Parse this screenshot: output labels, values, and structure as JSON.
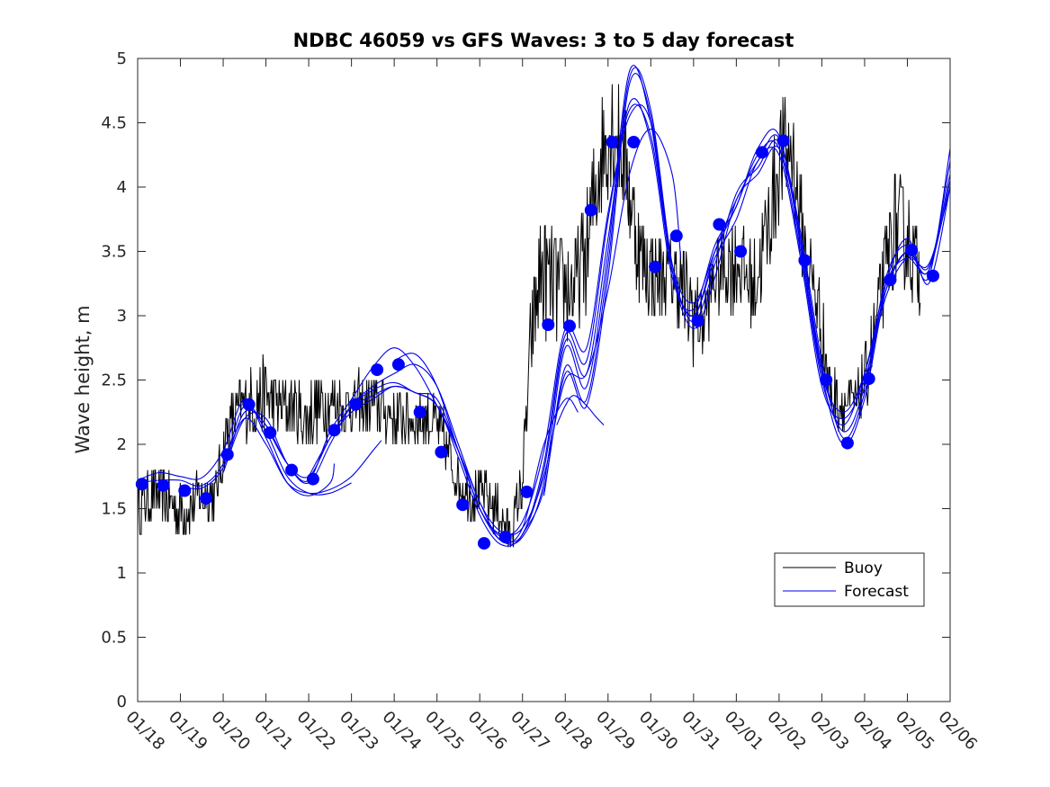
{
  "chart_data": {
    "type": "line",
    "title": "NDBC 46059 vs GFS Waves: 3 to 5 day forecast",
    "xlabel": "",
    "ylabel": "Wave height, m",
    "xlim": [
      0,
      19
    ],
    "ylim": [
      0,
      5
    ],
    "x_tick_labels": [
      "01/18",
      "01/19",
      "01/20",
      "01/21",
      "01/22",
      "01/23",
      "01/24",
      "01/25",
      "01/26",
      "01/27",
      "01/28",
      "01/29",
      "01/30",
      "01/31",
      "02/01",
      "02/02",
      "02/03",
      "02/04",
      "02/05",
      "02/06"
    ],
    "y_ticks": [
      0,
      0.5,
      1,
      1.5,
      2,
      2.5,
      3,
      3.5,
      4,
      4.5,
      5
    ],
    "y_tick_labels": [
      "0",
      "0.5",
      "1",
      "1.5",
      "2",
      "2.5",
      "3",
      "3.5",
      "4",
      "4.5",
      "5"
    ],
    "colors": {
      "buoy": "#000000",
      "forecast": "#0000ee",
      "markers": "#0000ff"
    },
    "legend": {
      "position": "lower-right",
      "entries": [
        {
          "name": "Buoy",
          "color": "#000000"
        },
        {
          "name": "Forecast",
          "color": "#0000ee"
        }
      ]
    },
    "buoy_anchors": {
      "x": [
        0,
        0.3,
        0.6,
        0.9,
        1.2,
        1.5,
        1.8,
        2.1,
        2.4,
        2.7,
        3.0,
        3.3,
        3.6,
        3.9,
        4.2,
        4.5,
        4.8,
        5.1,
        5.4,
        5.7,
        6.0,
        6.3,
        6.6,
        6.9,
        7.2,
        7.5,
        7.8,
        8.1,
        8.4,
        8.7,
        9.0,
        9.2,
        9.4,
        9.6,
        9.9,
        10.2,
        10.5,
        10.8,
        11.1,
        11.4,
        11.7,
        12.0,
        12.3,
        12.6,
        12.9,
        13.2,
        13.5,
        13.8,
        14.1,
        14.4,
        14.7,
        15.0,
        15.3,
        15.6,
        15.9,
        16.2,
        16.5,
        16.8,
        17.1,
        17.4,
        17.7,
        18.0,
        18.3
      ],
      "y": [
        1.5,
        1.6,
        1.6,
        1.5,
        1.5,
        1.6,
        1.6,
        2.1,
        2.3,
        2.3,
        2.4,
        2.3,
        2.3,
        2.2,
        2.3,
        2.3,
        2.3,
        2.3,
        2.3,
        2.3,
        2.2,
        2.2,
        2.2,
        2.2,
        2.0,
        1.7,
        1.6,
        1.6,
        1.5,
        1.3,
        1.7,
        2.8,
        3.3,
        3.3,
        3.2,
        3.2,
        3.5,
        4.2,
        4.5,
        4.2,
        3.5,
        3.3,
        3.3,
        3.3,
        3.1,
        2.9,
        3.3,
        3.4,
        3.4,
        3.2,
        3.6,
        4.2,
        4.3,
        3.5,
        3.1,
        2.4,
        2.3,
        2.3,
        2.6,
        3.2,
        3.7,
        3.6,
        3.3
      ],
      "range": [
        0.45,
        0.5,
        0.45,
        0.5,
        0.45,
        0.4,
        0.4,
        0.5,
        0.5,
        0.6,
        0.6,
        0.55,
        0.5,
        0.55,
        0.55,
        0.5,
        0.5,
        0.5,
        0.55,
        0.5,
        0.5,
        0.5,
        0.5,
        0.5,
        0.5,
        0.4,
        0.4,
        0.4,
        0.4,
        0.3,
        0.45,
        0.8,
        0.9,
        1.0,
        0.9,
        0.8,
        0.9,
        1.0,
        1.1,
        0.9,
        0.8,
        0.8,
        0.6,
        0.7,
        0.9,
        0.6,
        0.6,
        0.8,
        0.8,
        0.7,
        0.9,
        1.0,
        0.9,
        0.7,
        0.7,
        0.5,
        0.4,
        0.4,
        0.6,
        0.7,
        0.9,
        0.9,
        0.6
      ]
    },
    "forecast_series": [
      {
        "name": "Forecast 1",
        "x": [
          0,
          0.5,
          1,
          1.5,
          2,
          2.5,
          3,
          3.5,
          4,
          4.5,
          4.6
        ],
        "y": [
          1.72,
          1.78,
          1.75,
          1.74,
          1.95,
          2.35,
          2.05,
          1.7,
          1.6,
          1.7,
          1.85
        ]
      },
      {
        "name": "Forecast 2",
        "x": [
          0,
          0.5,
          1,
          1.5,
          2,
          2.5,
          3,
          3.5,
          4,
          4.5,
          5
        ],
        "y": [
          1.7,
          1.72,
          1.72,
          1.68,
          1.85,
          2.3,
          2.1,
          1.75,
          1.62,
          1.62,
          1.7
        ]
      },
      {
        "name": "Forecast 3",
        "x": [
          2,
          2.5,
          3,
          3.5,
          4,
          4.5,
          5,
          5.5,
          5.7
        ],
        "y": [
          1.85,
          2.2,
          2.0,
          1.7,
          1.62,
          1.65,
          1.75,
          1.95,
          2.03
        ]
      },
      {
        "name": "Forecast 4",
        "x": [
          1,
          1.5,
          2,
          2.5,
          3,
          3.5,
          4,
          4.5,
          5,
          5.5,
          6,
          6.5,
          7,
          7.5,
          8,
          8.5,
          9,
          9.5,
          10,
          10.3
        ],
        "y": [
          1.68,
          1.66,
          1.82,
          2.25,
          2.15,
          1.85,
          1.72,
          2.1,
          2.35,
          2.6,
          2.75,
          2.6,
          2.3,
          1.95,
          1.55,
          1.25,
          1.35,
          2.0,
          2.35,
          2.25
        ]
      },
      {
        "name": "Forecast 5",
        "x": [
          2,
          2.5,
          3,
          3.5,
          4,
          4.5,
          5,
          5.5,
          6,
          6.5,
          7,
          7.5,
          8,
          8.5,
          9,
          9.5,
          10,
          10.5,
          11,
          11.5,
          12,
          12.5,
          12.7
        ],
        "y": [
          1.78,
          2.2,
          2.2,
          1.85,
          1.7,
          2.0,
          2.3,
          2.45,
          2.55,
          2.62,
          2.45,
          2.0,
          1.55,
          1.32,
          1.35,
          1.75,
          2.5,
          2.55,
          3.2,
          4.1,
          4.45,
          4.1,
          3.45
        ]
      },
      {
        "name": "Forecast 6",
        "x": [
          3,
          3.5,
          4,
          4.5,
          5,
          5.5,
          6,
          6.5,
          7,
          7.5,
          8,
          8.5,
          9,
          9.5,
          10,
          10.5,
          11,
          11.5,
          12,
          12.5,
          13,
          13.5,
          14,
          14.5,
          15,
          15.5,
          16,
          16.5,
          17,
          17.5,
          18,
          18.5,
          19
        ],
        "y": [
          2.15,
          1.85,
          1.75,
          2.05,
          2.3,
          2.42,
          2.48,
          2.4,
          2.35,
          1.95,
          1.5,
          1.3,
          1.4,
          1.95,
          2.9,
          2.75,
          3.8,
          4.55,
          4.5,
          3.4,
          3.1,
          3.5,
          3.85,
          4.25,
          4.3,
          3.5,
          2.5,
          2.15,
          2.55,
          3.25,
          3.45,
          3.35,
          4.05
        ]
      },
      {
        "name": "Forecast 7",
        "x": [
          4,
          4.5,
          5,
          5.5,
          6,
          6.5,
          7,
          7.5,
          8,
          8.5,
          9,
          9.5,
          10,
          10.5,
          11,
          11.5,
          12,
          12.5,
          13,
          13.5,
          14,
          14.5,
          15,
          15.5,
          16,
          16.5,
          17,
          17.5,
          18,
          18.5,
          19
        ],
        "y": [
          1.75,
          2.05,
          2.25,
          2.35,
          2.45,
          2.4,
          2.3,
          1.95,
          1.5,
          1.28,
          1.3,
          1.85,
          2.85,
          2.65,
          3.75,
          4.6,
          4.4,
          3.35,
          3.0,
          3.45,
          3.75,
          4.2,
          4.25,
          3.45,
          2.45,
          2.2,
          2.5,
          3.15,
          3.45,
          3.4,
          4.0
        ]
      },
      {
        "name": "Forecast 8",
        "x": [
          5,
          5.5,
          6,
          6.5,
          7,
          7.5,
          8,
          8.5,
          9,
          9.5,
          10,
          10.5,
          11,
          11.5,
          12,
          12.5,
          13,
          13.5,
          14,
          14.5,
          15,
          15.5,
          16,
          16.5,
          17,
          17.5,
          18,
          18.5,
          19
        ],
        "y": [
          2.3,
          2.38,
          2.45,
          2.4,
          2.3,
          1.9,
          1.45,
          1.22,
          1.3,
          1.8,
          2.8,
          2.55,
          3.6,
          4.65,
          4.35,
          3.3,
          3.05,
          3.55,
          3.85,
          4.3,
          4.4,
          3.55,
          2.55,
          2.25,
          2.55,
          3.2,
          3.5,
          3.38,
          4.1
        ]
      },
      {
        "name": "Forecast 9",
        "x": [
          6,
          6.5,
          7,
          7.5,
          8,
          8.5,
          9,
          9.5,
          10,
          10.5,
          11,
          11.5,
          12,
          12.5,
          13,
          13.5,
          14,
          14.5,
          15,
          15.5,
          16,
          16.5,
          17,
          17.5,
          18,
          18.5,
          19
        ],
        "y": [
          2.65,
          2.7,
          2.45,
          1.95,
          1.5,
          1.25,
          1.28,
          1.7,
          2.75,
          2.45,
          3.5,
          4.9,
          4.5,
          3.35,
          3.0,
          3.5,
          3.9,
          4.2,
          4.38,
          3.6,
          2.6,
          2.1,
          2.45,
          3.3,
          3.55,
          3.3,
          4.3
        ]
      },
      {
        "name": "Forecast 10",
        "x": [
          9,
          9.5,
          10,
          10.5,
          11,
          11.5,
          12,
          12.5,
          13,
          13.5,
          14,
          14.5,
          15,
          15.5,
          16,
          16.5,
          17,
          17.5,
          18,
          18.5,
          19
        ],
        "y": [
          1.3,
          1.65,
          2.6,
          2.35,
          3.4,
          4.85,
          4.6,
          3.4,
          2.95,
          3.4,
          3.95,
          4.15,
          4.35,
          3.65,
          2.65,
          2.05,
          2.4,
          3.25,
          3.6,
          3.25,
          4.0
        ]
      },
      {
        "name": "Forecast 11",
        "x": [
          9.5,
          10,
          10.5,
          11,
          11.5,
          12,
          12.5,
          13,
          13.5,
          14,
          14.5,
          15,
          15.5,
          16,
          16.5,
          17,
          17.5,
          18,
          18.5,
          19
        ],
        "y": [
          1.6,
          2.55,
          2.3,
          3.3,
          4.8,
          4.55,
          3.35,
          2.9,
          3.3,
          3.9,
          4.1,
          4.3,
          3.6,
          2.55,
          2.0,
          2.35,
          3.2,
          3.5,
          3.35,
          4.2
        ]
      },
      {
        "name": "Forecast 12",
        "x": [
          9.8,
          10,
          10.2,
          10.5,
          10.7,
          10.9
        ],
        "y": [
          2.15,
          2.3,
          2.38,
          2.3,
          2.22,
          2.15
        ]
      }
    ],
    "marker_points": {
      "x": [
        0.1,
        0.6,
        1.1,
        1.6,
        2.1,
        2.6,
        3.1,
        3.6,
        4.1,
        4.6,
        5.1,
        5.6,
        6.1,
        6.6,
        7.1,
        7.6,
        8.1,
        8.6,
        9.1,
        9.6,
        10.1,
        10.6,
        11.1,
        11.6,
        12.1,
        12.6,
        13.1,
        13.6,
        14.1,
        14.6,
        15.1,
        15.6,
        16.1,
        16.6,
        17.1,
        17.6,
        18.1,
        18.6
      ],
      "y": [
        1.69,
        1.68,
        1.64,
        1.58,
        1.92,
        2.31,
        2.09,
        1.8,
        1.73,
        2.11,
        2.31,
        2.58,
        2.62,
        2.25,
        1.94,
        1.53,
        1.23,
        1.28,
        1.63,
        2.93,
        2.92,
        3.82,
        4.35,
        4.35,
        3.38,
        3.62,
        2.96,
        3.71,
        3.5,
        4.27,
        4.36,
        3.43,
        2.5,
        2.01,
        2.51,
        3.28,
        3.51,
        3.31
      ]
    }
  }
}
